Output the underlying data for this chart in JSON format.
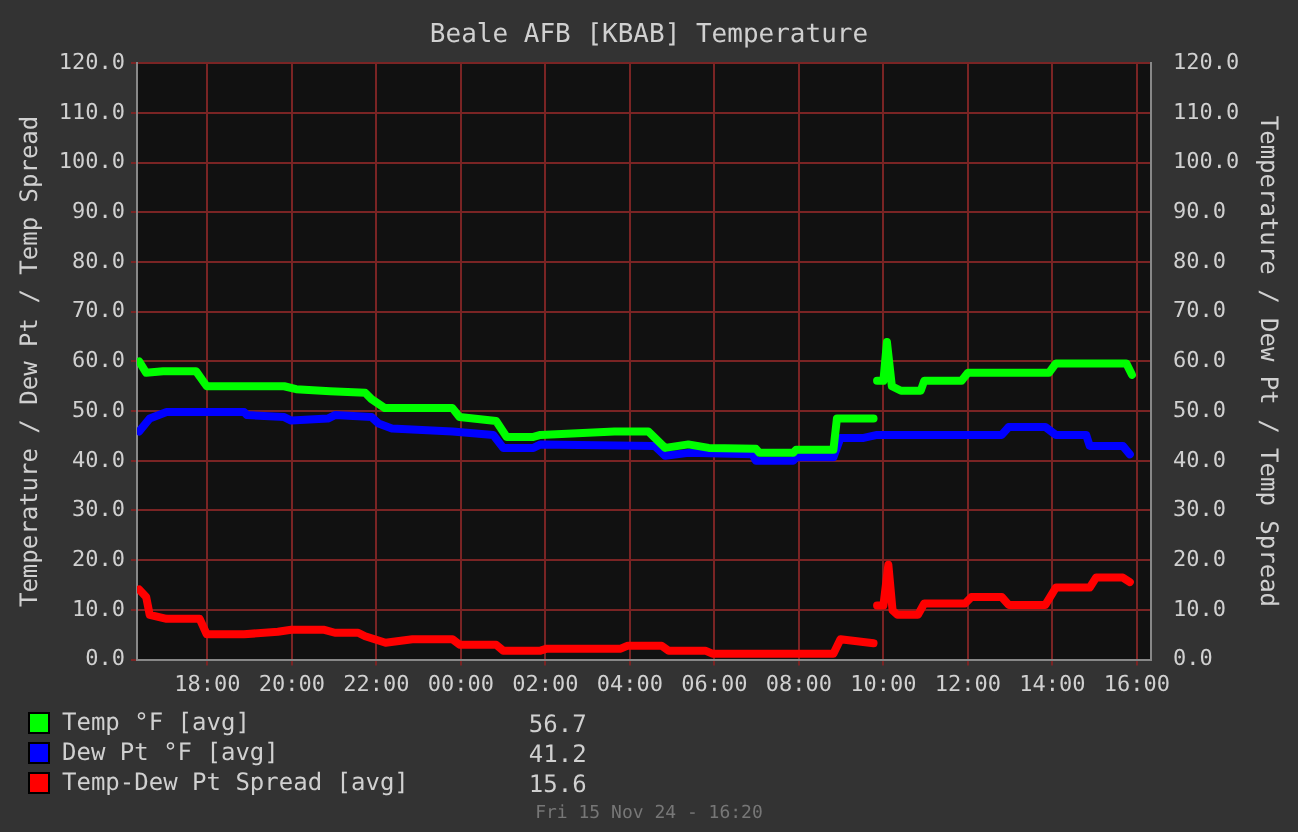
{
  "chart_data": {
    "type": "line",
    "title": "Beale AFB [KBAB] Temperature",
    "ylabel": "Temperature / Dew Pt / Temp Spread",
    "y2label": "Temperature / Dew Pt / Temp Spread",
    "xlim": [
      "--11-14T16:20",
      "--11-15T16:20"
    ],
    "xticks": [
      {
        "value": "--11-14T18:00",
        "label": "18:00"
      },
      {
        "value": "--11-14T20:00",
        "label": "20:00"
      },
      {
        "value": "--11-14T22:00",
        "label": "22:00"
      },
      {
        "value": "--11-15T00:00",
        "label": "00:00"
      },
      {
        "value": "--11-15T02:00",
        "label": "02:00"
      },
      {
        "value": "--11-15T04:00",
        "label": "04:00"
      },
      {
        "value": "--11-15T06:00",
        "label": "06:00"
      },
      {
        "value": "--11-15T08:00",
        "label": "08:00"
      },
      {
        "value": "--11-15T10:00",
        "label": "10:00"
      },
      {
        "value": "--11-15T12:00",
        "label": "12:00"
      },
      {
        "value": "--11-15T14:00",
        "label": "14:00"
      },
      {
        "value": "--11-15T16:00",
        "label": "16:00"
      }
    ],
    "ylim": [
      0,
      120
    ],
    "yticks": [
      {
        "value": 0,
        "label": "0.0"
      },
      {
        "value": 10,
        "label": "10.0"
      },
      {
        "value": 20,
        "label": "20.0"
      },
      {
        "value": 30,
        "label": "30.0"
      },
      {
        "value": 40,
        "label": "40.0"
      },
      {
        "value": 50,
        "label": "50.0"
      },
      {
        "value": 60,
        "label": "60.0"
      },
      {
        "value": 70,
        "label": "70.0"
      },
      {
        "value": 80,
        "label": "80.0"
      },
      {
        "value": 90,
        "label": "90.0"
      },
      {
        "value": 100,
        "label": "100.0"
      },
      {
        "value": 110,
        "label": "110.0"
      },
      {
        "value": 120,
        "label": "120.0"
      }
    ],
    "y2lim": [
      0,
      120
    ],
    "y2ticks": [
      {
        "value": 0,
        "label": "0.0"
      },
      {
        "value": 10,
        "label": "10.0"
      },
      {
        "value": 20,
        "label": "20.0"
      },
      {
        "value": 30,
        "label": "30.0"
      },
      {
        "value": 40,
        "label": "40.0"
      },
      {
        "value": 50,
        "label": "50.0"
      },
      {
        "value": 60,
        "label": "60.0"
      },
      {
        "value": 70,
        "label": "70.0"
      },
      {
        "value": 80,
        "label": "80.0"
      },
      {
        "value": 90,
        "label": "90.0"
      },
      {
        "value": 100,
        "label": "100.0"
      },
      {
        "value": 110,
        "label": "110.0"
      },
      {
        "value": 120,
        "label": "120.0"
      }
    ],
    "grid": true,
    "legend": "bottom left",
    "line_style": "solid",
    "series": [
      {
        "name": "Temp °F [avg]",
        "color": "#00ff00",
        "x": [
          "--11-14T16:23",
          "--11-14T16:33",
          "--11-14T16:57",
          "--11-14T17:44",
          "--11-14T17:59",
          "--11-14T19:49",
          "--11-14T20:06",
          "--11-14T20:54",
          "--11-14T21:44",
          "--11-14T21:53",
          "--11-14T22:12",
          "--11-14T23:48",
          "--11-14T23:58",
          "--11-15T00:50",
          "--11-15T01:05",
          "--11-15T01:43",
          "--11-15T01:53",
          "--11-15T03:38",
          "--11-15T04:26",
          "--11-15T04:50",
          "--11-15T05:23",
          "--11-15T05:52",
          "--11-15T06:59",
          "--11-15T07:04",
          "--11-15T07:52",
          "--11-15T07:56",
          "--11-15T08:49",
          "--11-15T08:54",
          "--11-15T09:46",
          "--11-15T09:49",
          "--11-15T09:51",
          "--11-15T10:00",
          "--11-15T10:05",
          "--11-15T10:12",
          "--11-15T10:25",
          "--11-15T10:53",
          "--11-15T10:58",
          "--11-15T11:51",
          "--11-15T12:00",
          "--11-15T13:55",
          "--11-15T14:05",
          "--11-15T15:45",
          "--11-15T15:53"
        ],
        "values": [
          60.0,
          57.7,
          58.0,
          58.0,
          55.0,
          55.0,
          54.4,
          54.0,
          53.7,
          52.4,
          50.6,
          50.6,
          48.8,
          48.0,
          44.8,
          44.8,
          45.2,
          45.9,
          45.9,
          42.6,
          43.3,
          42.6,
          42.4,
          41.6,
          41.6,
          42.2,
          42.2,
          48.5,
          48.5,
          null,
          56.1,
          56.1,
          63.9,
          55.0,
          54.1,
          54.1,
          56.1,
          56.1,
          57.7,
          57.7,
          59.6,
          59.6,
          57.3
        ]
      },
      {
        "name": "Dew Pt °F [avg]",
        "color": "#0000ff",
        "x": [
          "--11-14T16:23",
          "--11-14T16:38",
          "--11-14T17:02",
          "--11-14T18:52",
          "--11-14T18:56",
          "--11-14T19:49",
          "--11-14T19:59",
          "--11-14T20:51",
          "--11-14T21:01",
          "--11-14T21:53",
          "--11-14T22:03",
          "--11-14T22:22",
          "--11-14T23:48",
          "--11-15T00:46",
          "--11-15T01:00",
          "--11-15T01:43",
          "--11-15T01:53",
          "--11-15T04:35",
          "--11-15T04:50",
          "--11-15T05:23",
          "--11-15T06:54",
          "--11-15T06:59",
          "--11-15T07:52",
          "--11-15T07:56",
          "--11-15T08:49",
          "--11-15T08:59",
          "--11-15T09:32",
          "--11-15T09:51",
          "--11-15T12:48",
          "--11-15T12:58",
          "--11-15T13:50",
          "--11-15T14:05",
          "--11-15T14:48",
          "--11-15T14:53",
          "--11-15T15:40",
          "--11-15T15:50"
        ],
        "values": [
          45.9,
          48.5,
          49.8,
          49.8,
          49.2,
          48.8,
          48.1,
          48.5,
          49.2,
          48.8,
          47.5,
          46.5,
          45.9,
          45.2,
          42.6,
          42.6,
          43.3,
          43.0,
          41.0,
          41.6,
          41.3,
          40.0,
          40.0,
          40.7,
          40.7,
          44.6,
          44.6,
          45.2,
          45.2,
          46.8,
          46.8,
          45.2,
          45.2,
          43.0,
          43.0,
          41.3
        ]
      },
      {
        "name": "Temp-Dew Pt Spread [avg]",
        "color": "#ff0000",
        "x": [
          "--11-14T16:23",
          "--11-14T16:33",
          "--11-14T16:38",
          "--11-14T17:02",
          "--11-14T17:49",
          "--11-14T17:59",
          "--11-14T18:52",
          "--11-14T19:40",
          "--11-14T19:59",
          "--11-14T20:46",
          "--11-14T21:01",
          "--11-14T21:34",
          "--11-14T21:44",
          "--11-14T22:13",
          "--11-14T22:51",
          "--11-14T23:48",
          "--11-14T23:58",
          "--11-15T00:50",
          "--11-15T01:00",
          "--11-15T01:53",
          "--11-15T02:02",
          "--11-15T03:47",
          "--11-15T03:57",
          "--11-15T04:45",
          "--11-15T04:55",
          "--11-15T05:47",
          "--11-15T05:57",
          "--11-15T08:49",
          "--11-15T08:59",
          "--11-15T09:46",
          "--11-15T09:49",
          "--11-15T09:51",
          "--11-15T10:00",
          "--11-15T10:07",
          "--11-15T10:13",
          "--11-15T10:20",
          "--11-15T10:49",
          "--11-15T10:58",
          "--11-15T11:56",
          "--11-15T12:05",
          "--11-15T12:48",
          "--11-15T12:58",
          "--11-15T13:50",
          "--11-15T14:05",
          "--11-15T14:53",
          "--11-15T15:02",
          "--11-15T15:40",
          "--11-15T15:50"
        ],
        "values": [
          14.1,
          12.6,
          9.0,
          8.2,
          8.2,
          5.1,
          5.1,
          5.6,
          6.0,
          6.0,
          5.4,
          5.4,
          4.7,
          3.4,
          4.1,
          4.1,
          3.0,
          3.0,
          1.8,
          1.8,
          2.2,
          2.2,
          2.8,
          2.8,
          1.8,
          1.8,
          1.2,
          1.2,
          4.1,
          3.3,
          null,
          10.9,
          10.9,
          19.1,
          9.9,
          9.0,
          9.0,
          11.3,
          11.3,
          12.6,
          12.6,
          11.0,
          11.0,
          14.5,
          14.5,
          16.5,
          16.5,
          15.6
        ]
      }
    ],
    "annotations": [
      "56.7",
      "41.2",
      "15.6",
      "Fri 15 Nov 24 - 16:20"
    ]
  }
}
